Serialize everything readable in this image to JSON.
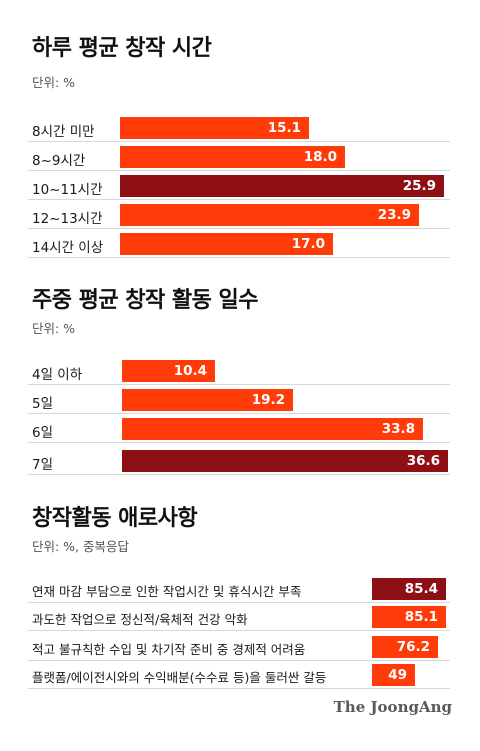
{
  "colors": {
    "normal": "#ff3b0a",
    "highlight": "#8e0f14",
    "text": "#1a1a1a"
  },
  "chart_data": [
    {
      "type": "bar",
      "orientation": "horizontal",
      "title": "하루 평균 창작 시간",
      "unit_label": "단위: %",
      "categories": [
        "8시간 미만",
        "8~9시간",
        "10~11시간",
        "12~13시간",
        "14시간 이상"
      ],
      "values": [
        15.1,
        18.0,
        25.9,
        23.9,
        17.0
      ],
      "value_labels": [
        "15.1",
        "18.0",
        "25.9",
        "23.9",
        "17.0"
      ],
      "highlight_index": 2
    },
    {
      "type": "bar",
      "orientation": "horizontal",
      "title": "주중 평균 창작 활동 일수",
      "unit_label": "단위: %",
      "categories": [
        "4일 이하",
        "5일",
        "6일",
        "7일"
      ],
      "values": [
        10.4,
        19.2,
        33.8,
        36.6
      ],
      "value_labels": [
        "10.4",
        "19.2",
        "33.8",
        "36.6"
      ],
      "highlight_index": 3
    },
    {
      "type": "bar",
      "orientation": "horizontal",
      "title": "창작활동 애로사항",
      "unit_label": "단위: %, 중복응답",
      "categories": [
        "연재 마감 부담으로 인한 작업시간 및 휴식시간 부족",
        "과도한 작업으로 정신적/육체적 건강 악화",
        "적고 불규칙한 수입 및 차기작 준비 중 경제적 어려움",
        "플랫폼/에이전시와의 수익배분(수수료 등)을 둘러싼 갈등"
      ],
      "values": [
        85.4,
        85.1,
        76.2,
        49
      ],
      "value_labels": [
        "85.4",
        "85.1",
        "76.2",
        "49"
      ],
      "highlight_index": 0
    }
  ],
  "credit": "The JoongAng"
}
